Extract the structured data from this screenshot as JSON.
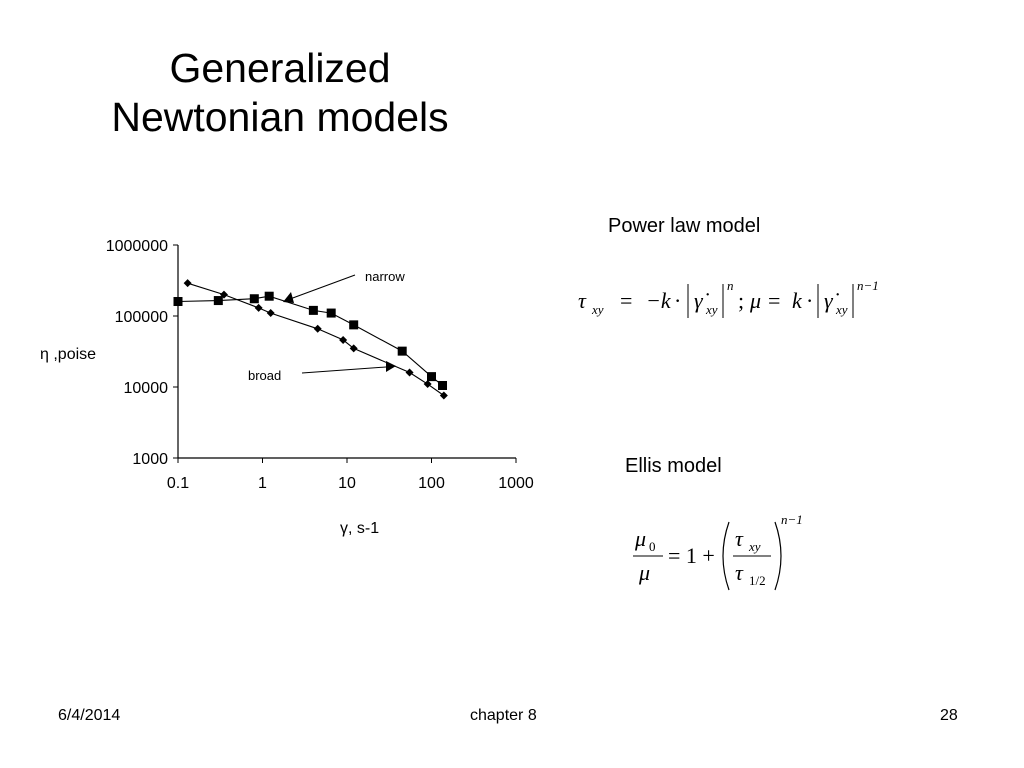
{
  "slide": {
    "title_line1": "Generalized",
    "title_line2": "Newtonian models",
    "power_law_label": "Power law model",
    "ellis_label": "Ellis model"
  },
  "footer": {
    "date": "6/4/2014",
    "chapter": "chapter 8",
    "page": "28"
  },
  "chart_data": {
    "type": "scatter",
    "title": "",
    "xlabel": "γ, s-1",
    "ylabel": "η ,poise",
    "xscale": "log",
    "yscale": "log",
    "xlim": [
      0.1,
      1000
    ],
    "ylim": [
      1000,
      1000000
    ],
    "x_ticks": [
      "0.1",
      "1",
      "10",
      "100",
      "1000"
    ],
    "y_ticks": [
      "1000",
      "10000",
      "100000",
      "1000000"
    ],
    "annotations": [
      "narrow",
      "broad"
    ],
    "series": [
      {
        "name": "narrow",
        "marker": "square",
        "x": [
          0.1,
          0.3,
          0.8,
          1.2,
          4,
          6.5,
          12,
          45,
          100,
          135
        ],
        "y": [
          160000,
          165000,
          175000,
          190000,
          120000,
          110000,
          75000,
          32000,
          14000,
          10500
        ]
      },
      {
        "name": "broad",
        "marker": "diamond",
        "x": [
          0.13,
          0.35,
          0.9,
          1.25,
          4.5,
          9,
          12,
          55,
          90,
          140
        ],
        "y": [
          290000,
          200000,
          130000,
          110000,
          66000,
          46000,
          35000,
          16000,
          11000,
          7600
        ]
      }
    ]
  },
  "equations": {
    "power_law": {
      "tau": "τ",
      "xy": "xy",
      "eq": "=",
      "minus_k": "−k",
      "dot": "·",
      "gamma_dot": "γ̇",
      "n": "n",
      "sep": ";",
      "mu": "μ",
      "k": "k",
      "n_minus_1": "n−1"
    },
    "ellis": {
      "mu0": "μ",
      "zero": "0",
      "mu": "μ",
      "eq_one_plus": "= 1 +",
      "tau": "τ",
      "xy": "xy",
      "half": "1/2",
      "n_minus_1": "n−1"
    }
  }
}
